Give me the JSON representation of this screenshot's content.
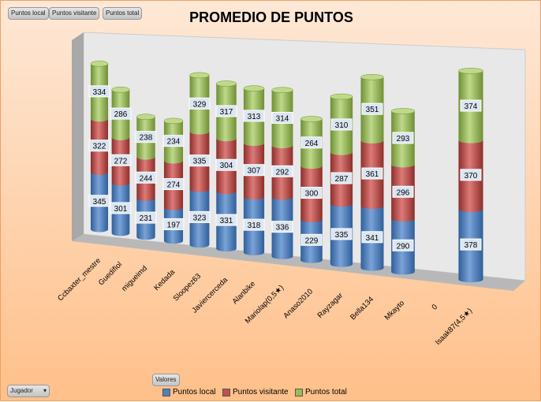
{
  "field_buttons": {
    "local": "Puntos local",
    "visitante": "Puntos visitante",
    "total": "Puntos total",
    "valores": "Valores",
    "jugador": "Jugador"
  },
  "legend": [
    {
      "label": "Puntos local",
      "color": "#4f81bd"
    },
    {
      "label": "Puntos visitante",
      "color": "#c0504d"
    },
    {
      "label": "Puntos total",
      "color": "#9bbb59"
    }
  ],
  "chart_data": {
    "type": "bar",
    "title": "PROMEDIO DE PUNTOS",
    "stacked": true,
    "style": "3d-cylinder",
    "categories": [
      "Ccbaxter_mestre",
      "Guedifiol",
      "migueimd",
      "Kedada",
      "Sloopez63",
      "Javiercerceda",
      "Alanbike",
      "Mariolap(0,5★)",
      "Anaso2010",
      "Rayzagar",
      "Bella134",
      "Mkayto",
      "0",
      "Isaak87(4,5★)"
    ],
    "series": [
      {
        "name": "Puntos local",
        "color": "#4f81bd",
        "values": [
          345,
          301,
          231,
          197,
          323,
          331,
          318,
          336,
          229,
          335,
          341,
          290,
          null,
          378
        ]
      },
      {
        "name": "Puntos visitante",
        "color": "#c0504d",
        "values": [
          322,
          272,
          244,
          274,
          335,
          304,
          307,
          292,
          300,
          287,
          361,
          296,
          null,
          370
        ]
      },
      {
        "name": "Puntos total",
        "color": "#9bbb59",
        "values": [
          334,
          286,
          238,
          234,
          329,
          317,
          313,
          314,
          264,
          310,
          351,
          293,
          null,
          374
        ]
      }
    ],
    "legend_position": "bottom"
  }
}
